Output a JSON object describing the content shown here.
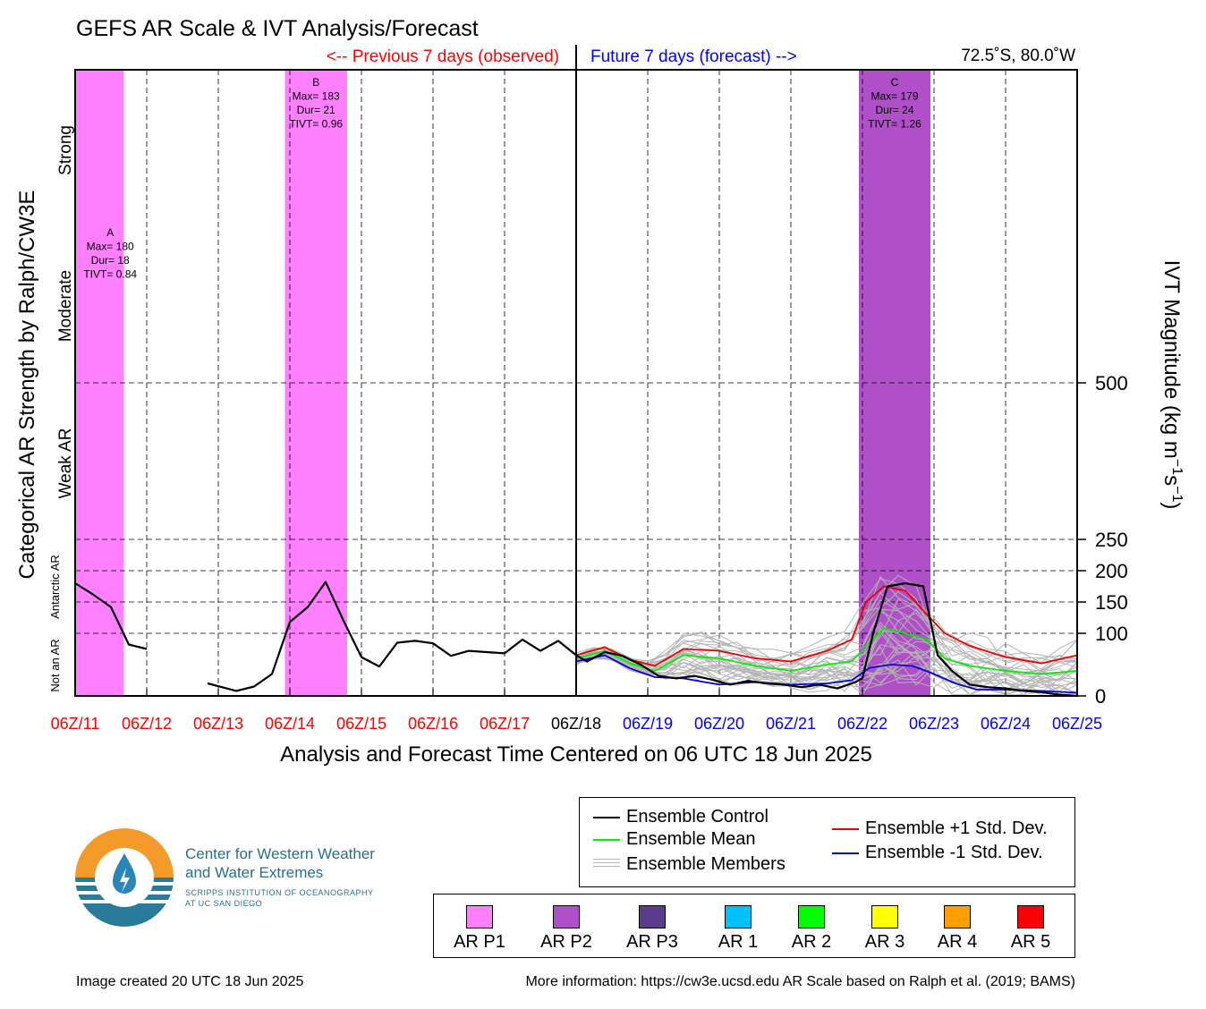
{
  "header": {
    "title": "GEFS AR Scale & IVT Analysis/Forecast",
    "previous_label": "<-- Previous 7 days (observed)",
    "future_label": "Future 7 days (forecast) -->",
    "location": "72.5˚S, 80.0˚W"
  },
  "axes": {
    "xlabel": "Analysis and Forecast Time Centered on 06 UTC 18 Jun 2025",
    "ylabel_left": "Categorical AR Strength by Ralph/CW3E",
    "ylabel_right_main": "IVT Magnitude (kg m",
    "ylabel_right_sup1": "−1",
    "ylabel_right_mid": "s",
    "ylabel_right_sup2": "−1",
    "ylabel_right_end": ")",
    "category_labels": [
      "Strong",
      "Moderate",
      "Weak AR",
      "Antarctic AR",
      "Not an AR"
    ],
    "right_ticks": [
      "500",
      "250",
      "200",
      "150",
      "100",
      "0"
    ],
    "x_ticks": [
      {
        "label": "06Z/11",
        "period": "past"
      },
      {
        "label": "06Z/12",
        "period": "past"
      },
      {
        "label": "06Z/13",
        "period": "past"
      },
      {
        "label": "06Z/14",
        "period": "past"
      },
      {
        "label": "06Z/15",
        "period": "past"
      },
      {
        "label": "06Z/16",
        "period": "past"
      },
      {
        "label": "06Z/17",
        "period": "past"
      },
      {
        "label": "06Z/18",
        "period": "now"
      },
      {
        "label": "06Z/19",
        "period": "future"
      },
      {
        "label": "06Z/20",
        "period": "future"
      },
      {
        "label": "06Z/21",
        "period": "future"
      },
      {
        "label": "06Z/22",
        "period": "future"
      },
      {
        "label": "06Z/23",
        "period": "future"
      },
      {
        "label": "06Z/24",
        "period": "future"
      },
      {
        "label": "06Z/25",
        "period": "future"
      }
    ]
  },
  "colors": {
    "past": "#ff0000",
    "future": "#0000ff",
    "ar_p1": "#ff80ff",
    "ar_p2": "#b050c8",
    "control": "#000000",
    "mean": "#00ee00",
    "plus_sd": "#ee0000",
    "minus_sd": "#0000dd",
    "members": "#b4b4b4"
  },
  "chart_data": {
    "type": "line",
    "x_unit": "days since 06Z/11 Jun 2025",
    "xlim": [
      0,
      14
    ],
    "ylim": [
      0,
      1000
    ],
    "grid": true,
    "ar_events": [
      {
        "label": "A",
        "max": "Max= 180",
        "dur": "Dur= 18",
        "tivt": "TIVT= 0.84",
        "start": 0,
        "end": 0.68,
        "category": "AR P1"
      },
      {
        "label": "B",
        "max": "Max= 183",
        "dur": "Dur= 21",
        "tivt": "TIVT= 0.96",
        "start": 2.93,
        "end": 3.8,
        "category": "AR P1"
      },
      {
        "label": "C",
        "max": "Max= 179",
        "dur": "Dur= 24",
        "tivt": "TIVT= 1.26",
        "start": 10.95,
        "end": 11.95,
        "category": "AR P2"
      }
    ],
    "series": [
      {
        "name": "Ensemble Control",
        "segments": [
          [
            [
              0,
              180
            ],
            [
              0.25,
              162
            ],
            [
              0.5,
              142
            ],
            [
              0.75,
              82
            ],
            [
              1.0,
              75
            ]
          ],
          [
            [
              1.85,
              20
            ],
            [
              2.25,
              8
            ],
            [
              2.5,
              15
            ],
            [
              2.75,
              35
            ],
            [
              3.0,
              118
            ],
            [
              3.25,
              142
            ],
            [
              3.5,
              182
            ],
            [
              3.75,
              120
            ],
            [
              4.0,
              62
            ],
            [
              4.25,
              47
            ],
            [
              4.5,
              85
            ],
            [
              4.75,
              88
            ],
            [
              5.0,
              84
            ],
            [
              5.25,
              64
            ],
            [
              5.5,
              72
            ],
            [
              5.75,
              70
            ],
            [
              6.0,
              68
            ],
            [
              6.25,
              90
            ],
            [
              6.5,
              72
            ],
            [
              6.75,
              88
            ],
            [
              7.0,
              65
            ],
            [
              7.15,
              55
            ],
            [
              7.4,
              70
            ],
            [
              7.65,
              64
            ],
            [
              7.9,
              50
            ],
            [
              8.15,
              32
            ],
            [
              8.4,
              28
            ],
            [
              8.65,
              32
            ],
            [
              8.9,
              26
            ],
            [
              9.15,
              18
            ],
            [
              9.4,
              24
            ],
            [
              9.65,
              20
            ],
            [
              9.9,
              18
            ],
            [
              10.15,
              14
            ],
            [
              10.4,
              18
            ],
            [
              10.65,
              12
            ],
            [
              10.9,
              22
            ],
            [
              11.0,
              28
            ],
            [
              11.15,
              100
            ],
            [
              11.35,
              175
            ],
            [
              11.6,
              180
            ],
            [
              11.85,
              175
            ],
            [
              12.05,
              65
            ],
            [
              12.25,
              40
            ],
            [
              12.5,
              18
            ],
            [
              12.75,
              14
            ],
            [
              13.0,
              12
            ],
            [
              13.25,
              8
            ],
            [
              13.5,
              6
            ],
            [
              13.75,
              2
            ],
            [
              14.0,
              0
            ]
          ]
        ]
      },
      {
        "name": "Ensemble Mean",
        "segments": [
          [
            [
              7.0,
              60
            ],
            [
              7.4,
              72
            ],
            [
              7.75,
              52
            ],
            [
              8.1,
              40
            ],
            [
              8.5,
              65
            ],
            [
              9.0,
              60
            ],
            [
              9.5,
              48
            ],
            [
              10.0,
              40
            ],
            [
              10.5,
              50
            ],
            [
              10.85,
              55
            ],
            [
              11.1,
              85
            ],
            [
              11.3,
              108
            ],
            [
              11.6,
              100
            ],
            [
              11.9,
              90
            ],
            [
              12.15,
              60
            ],
            [
              12.5,
              48
            ],
            [
              13.0,
              40
            ],
            [
              13.5,
              35
            ],
            [
              14.0,
              40
            ]
          ]
        ]
      },
      {
        "name": "Ensemble +1 Std. Dev.",
        "segments": [
          [
            [
              7.0,
              65
            ],
            [
              7.4,
              78
            ],
            [
              7.75,
              58
            ],
            [
              8.1,
              48
            ],
            [
              8.5,
              75
            ],
            [
              9.0,
              72
            ],
            [
              9.5,
              60
            ],
            [
              10.0,
              55
            ],
            [
              10.5,
              72
            ],
            [
              10.85,
              90
            ],
            [
              11.05,
              150
            ],
            [
              11.3,
              175
            ],
            [
              11.6,
              168
            ],
            [
              11.9,
              130
            ],
            [
              12.15,
              100
            ],
            [
              12.5,
              80
            ],
            [
              13.0,
              62
            ],
            [
              13.5,
              52
            ],
            [
              14.0,
              65
            ]
          ]
        ]
      },
      {
        "name": "Ensemble -1 Std. Dev.",
        "segments": [
          [
            [
              7.0,
              55
            ],
            [
              7.4,
              65
            ],
            [
              7.75,
              44
            ],
            [
              8.1,
              30
            ],
            [
              8.5,
              28
            ],
            [
              9.0,
              18
            ],
            [
              9.5,
              22
            ],
            [
              10.0,
              18
            ],
            [
              10.5,
              20
            ],
            [
              10.85,
              25
            ],
            [
              11.1,
              45
            ],
            [
              11.4,
              50
            ],
            [
              11.7,
              48
            ],
            [
              12.0,
              35
            ],
            [
              12.3,
              20
            ],
            [
              12.6,
              10
            ],
            [
              13.0,
              10
            ],
            [
              13.5,
              8
            ],
            [
              14.0,
              5
            ]
          ]
        ]
      }
    ]
  },
  "legend": {
    "entries": [
      {
        "label": "Ensemble Control",
        "color": "#000000"
      },
      {
        "label": "Ensemble Mean",
        "color": "#00ee00"
      },
      {
        "label": "Ensemble Members",
        "color": "#b4b4b4"
      },
      {
        "label": "Ensemble +1 Std. Dev.",
        "color": "#ee0000"
      },
      {
        "label": "Ensemble -1 Std. Dev.",
        "color": "#0000dd"
      }
    ]
  },
  "ar_scale": [
    {
      "label": "AR P1",
      "color": "#ff80ff"
    },
    {
      "label": "AR P2",
      "color": "#b050c8"
    },
    {
      "label": "AR P3",
      "color": "#5a3c8c"
    },
    {
      "label": "AR 1",
      "color": "#00c0ff"
    },
    {
      "label": "AR 2",
      "color": "#00ff00"
    },
    {
      "label": "AR 3",
      "color": "#ffff00"
    },
    {
      "label": "AR 4",
      "color": "#ffa000"
    },
    {
      "label": "AR 5",
      "color": "#ff0000"
    }
  ],
  "logo": {
    "line1": "Center for Western Weather",
    "line2": "and Water Extremes",
    "line3": "SCRIPPS INSTITUTION OF OCEANOGRAPHY",
    "line4": "AT UC SAN DIEGO"
  },
  "footer": {
    "created": "Image created 20 UTC 18 Jun 2025",
    "info": "More information: https://cw3e.ucsd.edu AR Scale based on Ralph et al. (2019; BAMS)"
  }
}
